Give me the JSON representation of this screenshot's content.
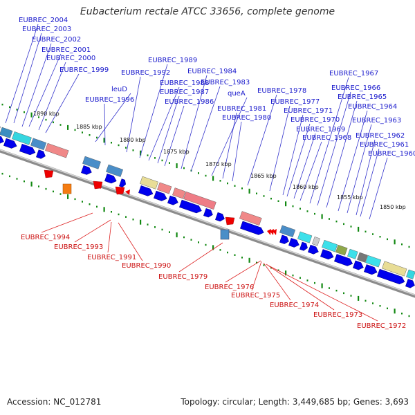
{
  "title": "Eubacterium rectale ATCC 33656, complete genome",
  "accession": "Accession: NC_012781",
  "topology": "Topology: circular; Length: 3,449,685 bp; Genes: 3,693",
  "kbp_labels": [
    "1890 kbp",
    "1885 kbp",
    "1880 kbp",
    "1875 kbp",
    "1870 kbp",
    "1865 kbp",
    "1860 kbp",
    "1855 kbp",
    "1850 kbp"
  ],
  "top_labels": [
    "EUBREC_2004",
    "EUBREC_2003",
    "EUBREC_2002",
    "EUBREC_2001",
    "EUBREC_2000",
    "EUBREC_1999",
    "leuD",
    "EUBREC_1996",
    "EUBREC_1992",
    "EUBREC_1989",
    "EUBREC_1988",
    "EUBREC_1987",
    "EUBREC_1986",
    "EUBREC_1984",
    "EUBREC_1983",
    "queA",
    "EUBREC_1981",
    "EUBREC_1980",
    "EUBREC_1978",
    "EUBREC_1977",
    "EUBREC_1971",
    "EUBREC_1970",
    "EUBREC_1969",
    "EUBREC_1968",
    "EUBREC_1967",
    "EUBREC_1966",
    "EUBREC_1965",
    "EUBREC_1964",
    "EUBREC_1963",
    "EUBREC_1962",
    "EUBREC_1961",
    "EUBREC_1960"
  ],
  "bottom_labels": [
    "EUBREC_1994",
    "EUBREC_1993",
    "EUBREC_1991",
    "EUBREC_1990",
    "EUBREC_1979",
    "EUBREC_1976",
    "EUBREC_1975",
    "EUBREC_1974",
    "EUBREC_1973",
    "EUBREC_1972"
  ],
  "colors": {
    "forward_gene": "#0000ee",
    "reverse_gene": "#ee0000",
    "backbone": "#9a9a9a",
    "tick": "#118811",
    "top_label": "#1a1acc",
    "bottom_label": "#cc1111"
  }
}
